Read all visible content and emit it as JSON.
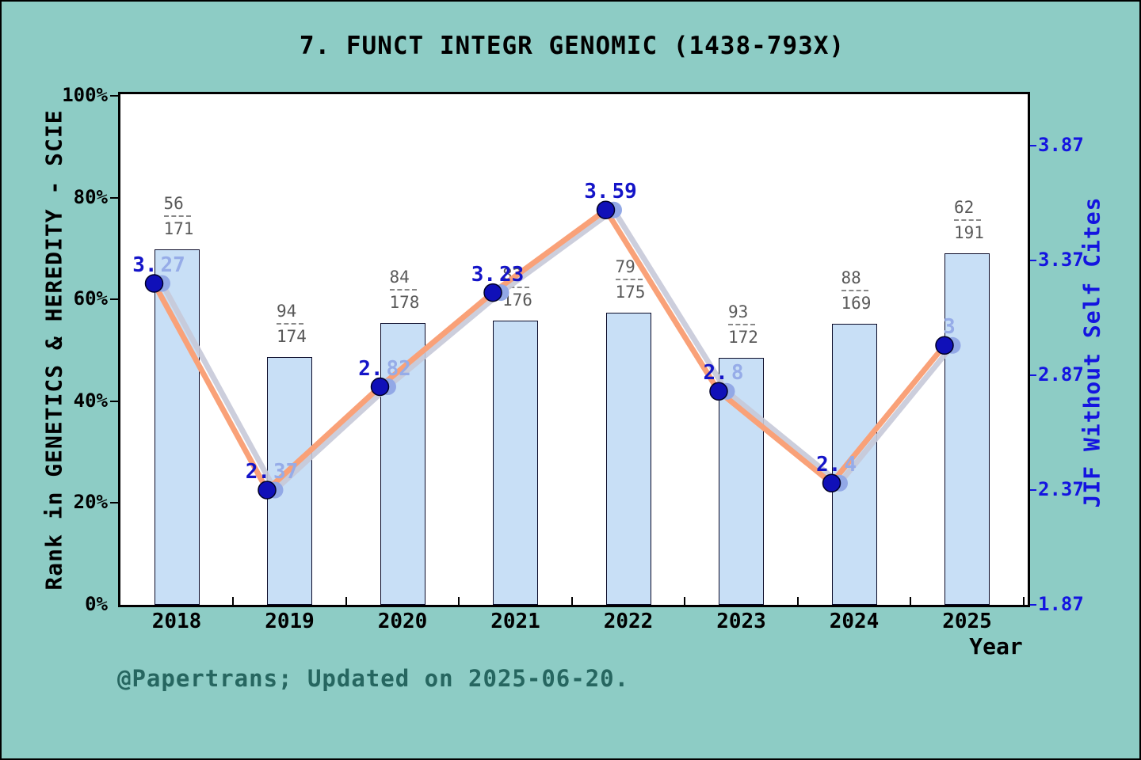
{
  "title": "7. FUNCT INTEGR GENOMIC (1438-793X)",
  "footer": "@Papertrans; Updated on 2025-06-20.",
  "left_axis": {
    "label": "Rank in GENETICS & HEREDITY - SCIE",
    "ticks": [
      "0%",
      "20%",
      "40%",
      "60%",
      "80%",
      "100%"
    ],
    "tick_values": [
      0,
      20,
      40,
      60,
      80,
      100
    ]
  },
  "right_axis": {
    "label": "JIF Without Self Cites",
    "ticks": [
      "1.87",
      "2.37",
      "2.87",
      "3.37",
      "3.87"
    ],
    "tick_values": [
      1.87,
      2.37,
      2.87,
      3.37,
      3.87
    ]
  },
  "chart_data": {
    "type": "bar+line",
    "title": "7. FUNCT INTEGR GENOMIC (1438-793X)",
    "xlabel": "Year",
    "categories": [
      "2018",
      "2019",
      "2020",
      "2021",
      "2022",
      "2023",
      "2024",
      "2025"
    ],
    "left_ylim": [
      0,
      100
    ],
    "right_ylim": [
      1.87,
      4.09
    ],
    "grid": false,
    "bar_series": {
      "name": "Rank in GENETICS & HEREDITY - SCIE",
      "axis": "left",
      "unit": "percent",
      "values_pct": [
        69.8,
        48.7,
        55.4,
        55.8,
        57.4,
        48.5,
        55.2,
        69.1
      ],
      "rank_fractions": [
        {
          "numerator": "56",
          "denominator": "171"
        },
        {
          "numerator": "94",
          "denominator": "174"
        },
        {
          "numerator": "84",
          "denominator": "178"
        },
        {
          "numerator": "82",
          "denominator": "176"
        },
        {
          "numerator": "79",
          "denominator": "175"
        },
        {
          "numerator": "93",
          "denominator": "172"
        },
        {
          "numerator": "88",
          "denominator": "169"
        },
        {
          "numerator": "62",
          "denominator": "191"
        }
      ]
    },
    "line_series": {
      "name": "JIF Without Self Cites",
      "axis": "right",
      "values": [
        3.27,
        2.37,
        2.82,
        3.23,
        3.59,
        2.8,
        2.4,
        3.0
      ],
      "point_labels": [
        [
          {
            "t": "3.",
            "tone": "dark"
          },
          {
            "t": "27",
            "tone": "light"
          }
        ],
        [
          {
            "t": "2.",
            "tone": "dark"
          },
          {
            "t": "37",
            "tone": "light"
          }
        ],
        [
          {
            "t": "2.",
            "tone": "dark"
          },
          {
            "t": "82",
            "tone": "light"
          }
        ],
        [
          {
            "t": "3.",
            "tone": "dark"
          },
          {
            "t": "23",
            "tone": "dark"
          }
        ],
        [
          {
            "t": "3.",
            "tone": "dark"
          },
          {
            "t": "59",
            "tone": "dark"
          }
        ],
        [
          {
            "t": "2.",
            "tone": "dark"
          },
          {
            "t": "8",
            "tone": "light"
          }
        ],
        [
          {
            "t": "2.",
            "tone": "dark"
          },
          {
            "t": "4",
            "tone": "light"
          }
        ],
        [
          {
            "t": "3",
            "tone": "light"
          }
        ]
      ]
    },
    "shadow_line_series": {
      "name": "JIF (overlapping lighter duplicate, offset right)",
      "axis": "right",
      "values": [
        3.27,
        2.37,
        2.82,
        3.23,
        3.59,
        2.8,
        2.4,
        3.0
      ]
    }
  },
  "colors": {
    "background": "#8DCCC5",
    "plot_background": "#FFFFFF",
    "bar_fill": "#C8DFF6",
    "bar_edge": "#0A0A28",
    "line": "#F9A178",
    "line_shadow": "#C6C9D8",
    "marker_dark": "#1010B8",
    "marker_light": "#92A8E6",
    "label_dark": "#1414C8",
    "label_light": "#96ACE8",
    "right_axis_text": "#1414E0",
    "fraction_text": "#595959",
    "axis_text": "#000000",
    "footer_text": "#266660"
  }
}
